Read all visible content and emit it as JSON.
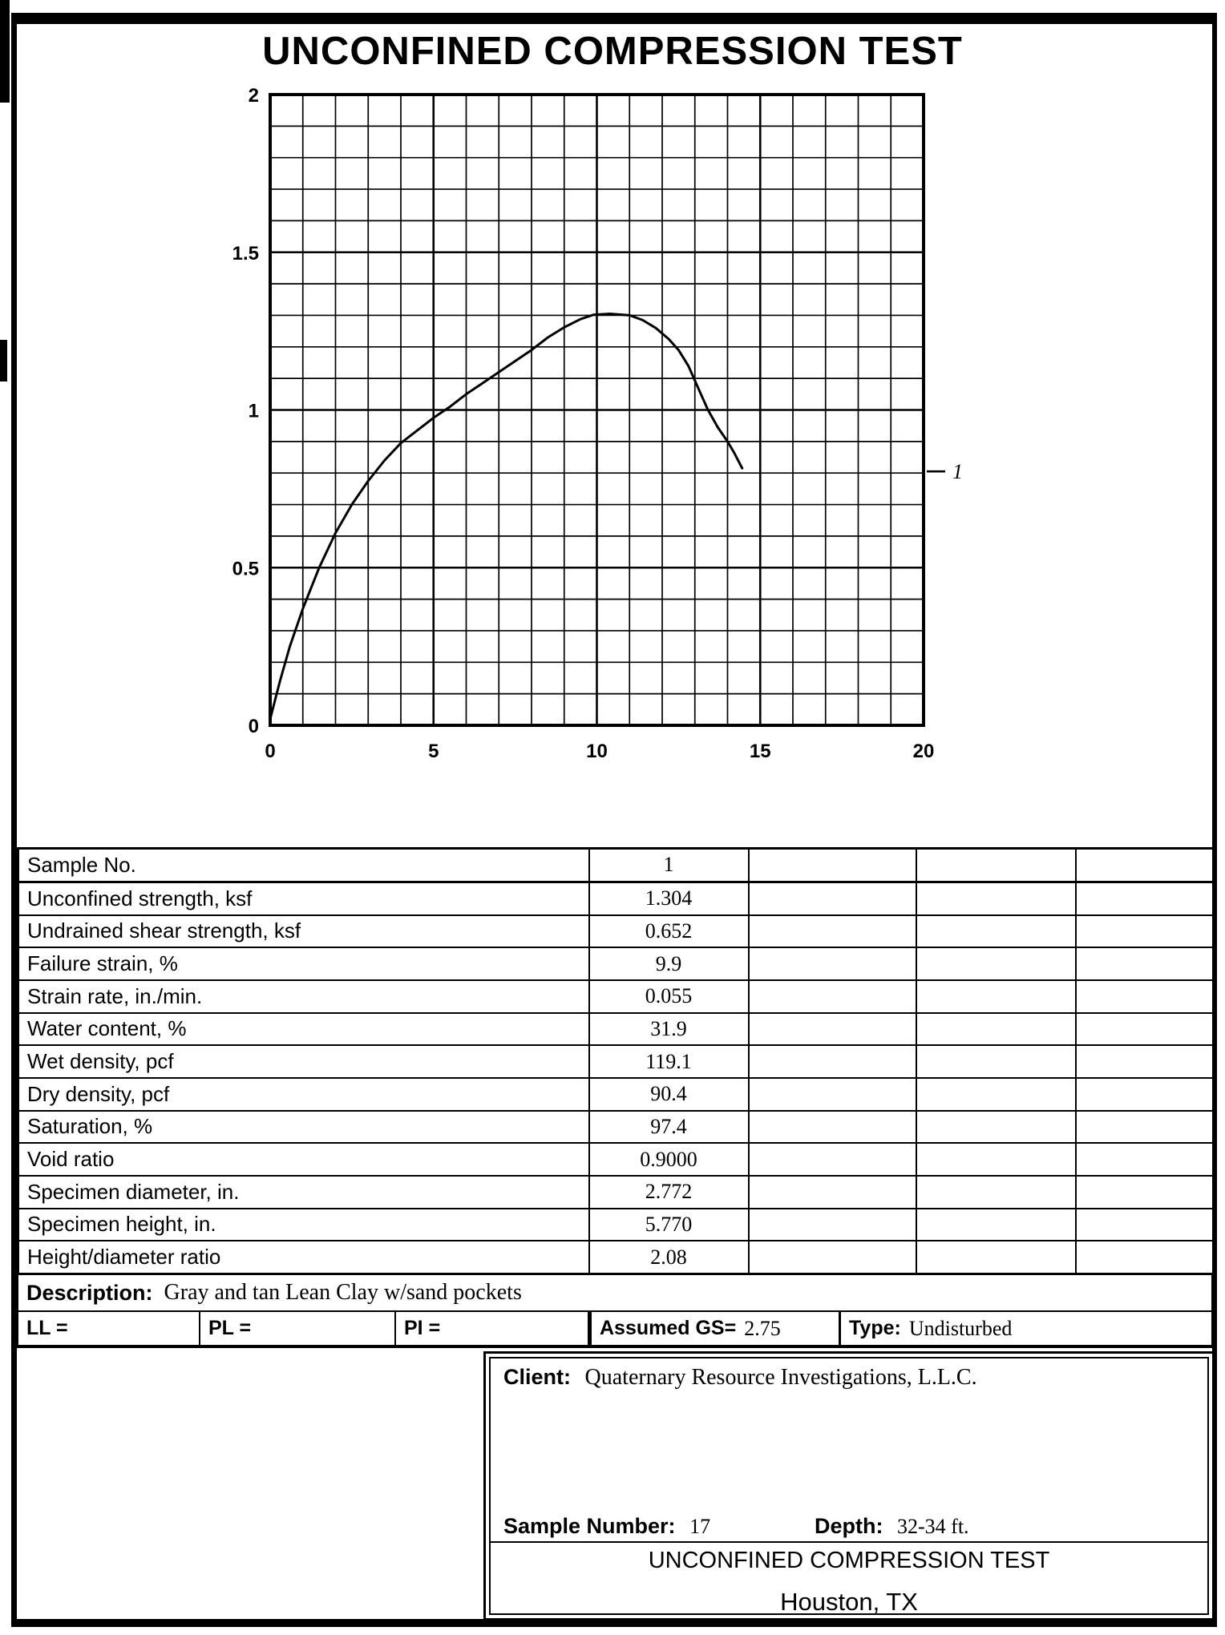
{
  "page": {
    "title": "UNCONFINED COMPRESSION TEST"
  },
  "chart_data": {
    "type": "line",
    "title": "",
    "xlabel": "",
    "ylabel": "",
    "xlim": [
      0,
      20
    ],
    "ylim": [
      0,
      2
    ],
    "x_ticks": [
      0,
      5,
      10,
      15,
      20
    ],
    "x_tick_labels": [
      "0",
      "5",
      "10",
      "15",
      "20"
    ],
    "y_ticks": [
      0,
      0.5,
      1,
      1.5,
      2
    ],
    "y_tick_labels": [
      "0",
      "0.5",
      "1",
      "1.5",
      "2"
    ],
    "x_minor_step": 1,
    "x_major_step": 5,
    "y_minor_step": 0.1,
    "y_major_step": 0.5,
    "grid": true,
    "legend": {
      "position": "right",
      "entries": [
        {
          "label": "1",
          "y_value": 0.805
        }
      ]
    },
    "series": [
      {
        "name": "1",
        "points": [
          [
            0,
            0.02
          ],
          [
            0.3,
            0.14
          ],
          [
            0.6,
            0.25
          ],
          [
            1,
            0.37
          ],
          [
            1.5,
            0.5
          ],
          [
            2,
            0.61
          ],
          [
            2.5,
            0.7
          ],
          [
            3,
            0.775
          ],
          [
            3.5,
            0.84
          ],
          [
            4,
            0.895
          ],
          [
            4.5,
            0.935
          ],
          [
            5,
            0.975
          ],
          [
            5.5,
            1.01
          ],
          [
            6,
            1.05
          ],
          [
            6.5,
            1.085
          ],
          [
            7,
            1.12
          ],
          [
            7.5,
            1.155
          ],
          [
            8,
            1.19
          ],
          [
            8.5,
            1.23
          ],
          [
            9,
            1.262
          ],
          [
            9.5,
            1.288
          ],
          [
            9.9,
            1.302
          ],
          [
            10.4,
            1.305
          ],
          [
            11,
            1.3
          ],
          [
            11.4,
            1.285
          ],
          [
            11.8,
            1.26
          ],
          [
            12.2,
            1.225
          ],
          [
            12.5,
            1.19
          ],
          [
            12.8,
            1.14
          ],
          [
            13.1,
            1.07
          ],
          [
            13.4,
            1.0
          ],
          [
            13.7,
            0.945
          ],
          [
            14,
            0.9
          ],
          [
            14.2,
            0.865
          ],
          [
            14.45,
            0.815
          ]
        ]
      }
    ]
  },
  "results_table": {
    "rows": [
      {
        "label": "Sample No.",
        "values": [
          "1",
          "",
          "",
          ""
        ]
      },
      {
        "label": "Unconfined strength, ksf",
        "values": [
          "1.304",
          "",
          "",
          ""
        ]
      },
      {
        "label": "Undrained shear strength, ksf",
        "values": [
          "0.652",
          "",
          "",
          ""
        ]
      },
      {
        "label": "Failure strain, %",
        "values": [
          "9.9",
          "",
          "",
          ""
        ]
      },
      {
        "label": "Strain rate, in./min.",
        "values": [
          "0.055",
          "",
          "",
          ""
        ]
      },
      {
        "label": "Water content, %",
        "values": [
          "31.9",
          "",
          "",
          ""
        ]
      },
      {
        "label": "Wet density, pcf",
        "values": [
          "119.1",
          "",
          "",
          ""
        ]
      },
      {
        "label": "Dry density, pcf",
        "values": [
          "90.4",
          "",
          "",
          ""
        ]
      },
      {
        "label": "Saturation, %",
        "values": [
          "97.4",
          "",
          "",
          ""
        ]
      },
      {
        "label": "Void ratio",
        "values": [
          "0.9000",
          "",
          "",
          ""
        ]
      },
      {
        "label": "Specimen diameter, in.",
        "values": [
          "2.772",
          "",
          "",
          ""
        ]
      },
      {
        "label": "Specimen height, in.",
        "values": [
          "5.770",
          "",
          "",
          ""
        ]
      },
      {
        "label": "Height/diameter ratio",
        "values": [
          "2.08",
          "",
          "",
          ""
        ]
      }
    ]
  },
  "description": {
    "label": "Description:",
    "value": "Gray and tan Lean Clay w/sand pockets"
  },
  "atterberg": {
    "ll_label": "LL =",
    "pl_label": "PL =",
    "pi_label": "PI =",
    "gs_label": "Assumed GS=",
    "gs_value": "2.75",
    "type_label": "Type:",
    "type_value": "Undisturbed"
  },
  "title_block": {
    "client_label": "Client:",
    "client_value": "Quaternary Resource Investigations, L.L.C.",
    "sample_label": "Sample Number:",
    "sample_value": "17",
    "depth_label": "Depth:",
    "depth_value": "32-34 ft.",
    "test_title": "UNCONFINED COMPRESSION TEST",
    "location": "Houston, TX"
  }
}
